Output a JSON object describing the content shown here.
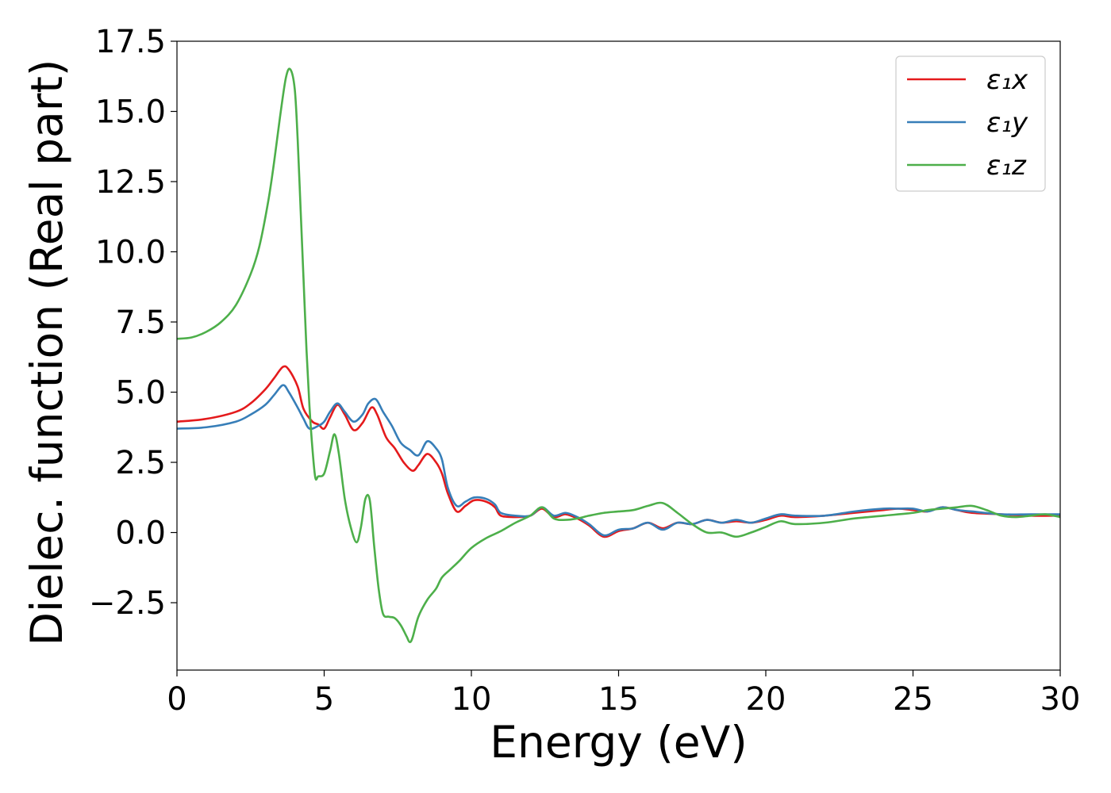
{
  "chart_data": {
    "type": "line",
    "xlabel": "Energy (eV)",
    "ylabel": "Dielec. function (Real part)",
    "xlim": [
      0,
      30
    ],
    "ylim": [
      -4.9,
      17.5
    ],
    "xticks": [
      0,
      5,
      10,
      15,
      20,
      25,
      30
    ],
    "xtick_labels": [
      "0",
      "5",
      "10",
      "15",
      "20",
      "25",
      "30"
    ],
    "yticks": [
      -2.5,
      0.0,
      2.5,
      5.0,
      7.5,
      10.0,
      12.5,
      15.0,
      17.5
    ],
    "ytick_labels": [
      "−2.5",
      "0.0",
      "2.5",
      "5.0",
      "7.5",
      "10.0",
      "12.5",
      "15.0",
      "17.5"
    ],
    "grid": false,
    "legend_position": "top-right",
    "series": [
      {
        "name": "ε₁x",
        "color": "#e41a1c",
        "x": [
          0,
          1,
          2,
          2.5,
          3,
          3.3,
          3.6,
          3.8,
          4.1,
          4.3,
          4.6,
          4.8,
          5.0,
          5.2,
          5.45,
          5.7,
          6.0,
          6.3,
          6.6,
          6.8,
          7.1,
          7.4,
          7.7,
          8.0,
          8.2,
          8.5,
          8.8,
          9.0,
          9.2,
          9.5,
          9.8,
          10.1,
          10.5,
          10.8,
          11.0,
          11.5,
          12.0,
          12.4,
          12.8,
          13.2,
          13.6,
          14.0,
          14.5,
          15.0,
          15.5,
          16.0,
          16.5,
          17.0,
          17.5,
          18.0,
          18.5,
          19.0,
          19.5,
          20.0,
          20.5,
          21.0,
          22.0,
          23.0,
          24.0,
          24.5,
          25.0,
          25.5,
          26.0,
          26.5,
          27.0,
          28.0,
          29.0,
          30.0
        ],
        "values": [
          3.95,
          4.05,
          4.3,
          4.6,
          5.1,
          5.5,
          5.9,
          5.8,
          5.2,
          4.4,
          3.95,
          3.85,
          3.7,
          4.1,
          4.55,
          4.2,
          3.65,
          3.9,
          4.45,
          4.2,
          3.4,
          3.0,
          2.5,
          2.2,
          2.4,
          2.8,
          2.5,
          2.1,
          1.4,
          0.75,
          0.95,
          1.15,
          1.1,
          0.9,
          0.6,
          0.55,
          0.6,
          0.85,
          0.55,
          0.65,
          0.5,
          0.25,
          -0.15,
          0.05,
          0.15,
          0.35,
          0.15,
          0.35,
          0.3,
          0.45,
          0.35,
          0.4,
          0.35,
          0.45,
          0.6,
          0.55,
          0.6,
          0.7,
          0.8,
          0.85,
          0.8,
          0.75,
          0.9,
          0.8,
          0.7,
          0.65,
          0.6,
          0.6
        ]
      },
      {
        "name": "ε₁y",
        "color": "#377eb8",
        "x": [
          0,
          1,
          2,
          2.5,
          3,
          3.3,
          3.6,
          3.8,
          4.1,
          4.3,
          4.5,
          4.8,
          5.0,
          5.2,
          5.45,
          5.7,
          6.0,
          6.3,
          6.5,
          6.75,
          7.0,
          7.3,
          7.6,
          7.9,
          8.2,
          8.5,
          8.8,
          9.0,
          9.2,
          9.5,
          9.8,
          10.1,
          10.5,
          10.8,
          11.0,
          11.5,
          12.0,
          12.4,
          12.8,
          13.2,
          13.6,
          14.0,
          14.5,
          15.0,
          15.5,
          16.0,
          16.5,
          17.0,
          17.5,
          18.0,
          18.5,
          19.0,
          19.5,
          20.0,
          20.5,
          21.0,
          22.0,
          23.0,
          24.0,
          24.5,
          25.0,
          25.5,
          26.0,
          26.5,
          27.0,
          28.0,
          29.0,
          30.0
        ],
        "values": [
          3.7,
          3.75,
          3.95,
          4.2,
          4.55,
          4.9,
          5.25,
          5.0,
          4.45,
          4.05,
          3.7,
          3.8,
          3.95,
          4.3,
          4.6,
          4.3,
          3.95,
          4.2,
          4.6,
          4.75,
          4.3,
          3.8,
          3.2,
          2.95,
          2.75,
          3.25,
          3.0,
          2.6,
          1.6,
          0.95,
          1.1,
          1.25,
          1.2,
          1.0,
          0.7,
          0.6,
          0.6,
          0.9,
          0.6,
          0.7,
          0.55,
          0.3,
          -0.1,
          0.1,
          0.15,
          0.35,
          0.1,
          0.35,
          0.3,
          0.45,
          0.35,
          0.45,
          0.35,
          0.5,
          0.65,
          0.6,
          0.6,
          0.75,
          0.85,
          0.85,
          0.85,
          0.75,
          0.9,
          0.8,
          0.75,
          0.65,
          0.65,
          0.65
        ]
      },
      {
        "name": "ε₁z",
        "color": "#4daf4a",
        "x": [
          0,
          0.5,
          1.0,
          1.5,
          2.0,
          2.5,
          2.8,
          3.1,
          3.3,
          3.5,
          3.7,
          3.85,
          4.0,
          4.1,
          4.2,
          4.3,
          4.4,
          4.5,
          4.6,
          4.7,
          4.8,
          5.0,
          5.2,
          5.35,
          5.5,
          5.7,
          5.9,
          6.1,
          6.25,
          6.4,
          6.55,
          6.7,
          6.85,
          7.0,
          7.2,
          7.4,
          7.6,
          7.8,
          7.9,
          8.0,
          8.2,
          8.5,
          8.8,
          9.0,
          9.3,
          9.6,
          10.0,
          10.5,
          11.0,
          11.5,
          12.0,
          12.4,
          12.8,
          13.2,
          13.6,
          14.0,
          14.5,
          15.0,
          15.5,
          16.0,
          16.5,
          17.0,
          17.5,
          18.0,
          18.5,
          19.0,
          19.5,
          20.0,
          20.5,
          21.0,
          22.0,
          23.0,
          24.0,
          25.0,
          25.5,
          26.0,
          26.5,
          27.0,
          27.5,
          28.0,
          28.5,
          29.0,
          29.5,
          30.0
        ],
        "values": [
          6.9,
          6.95,
          7.15,
          7.5,
          8.1,
          9.2,
          10.2,
          11.8,
          13.2,
          14.8,
          16.2,
          16.5,
          15.8,
          14.0,
          11.5,
          9.0,
          6.5,
          4.5,
          3.0,
          1.95,
          2.0,
          2.1,
          2.9,
          3.5,
          2.8,
          1.2,
          0.2,
          -0.35,
          0.2,
          1.2,
          1.15,
          -0.5,
          -2.0,
          -2.9,
          -3.0,
          -3.05,
          -3.3,
          -3.7,
          -3.9,
          -3.75,
          -3.0,
          -2.4,
          -2.0,
          -1.6,
          -1.3,
          -1.0,
          -0.55,
          -0.2,
          0.05,
          0.35,
          0.6,
          0.9,
          0.5,
          0.45,
          0.5,
          0.6,
          0.7,
          0.75,
          0.8,
          0.95,
          1.05,
          0.7,
          0.3,
          0.0,
          0.0,
          -0.15,
          0.0,
          0.2,
          0.4,
          0.3,
          0.35,
          0.5,
          0.6,
          0.7,
          0.8,
          0.85,
          0.9,
          0.95,
          0.8,
          0.6,
          0.55,
          0.6,
          0.65,
          0.55
        ]
      }
    ]
  }
}
